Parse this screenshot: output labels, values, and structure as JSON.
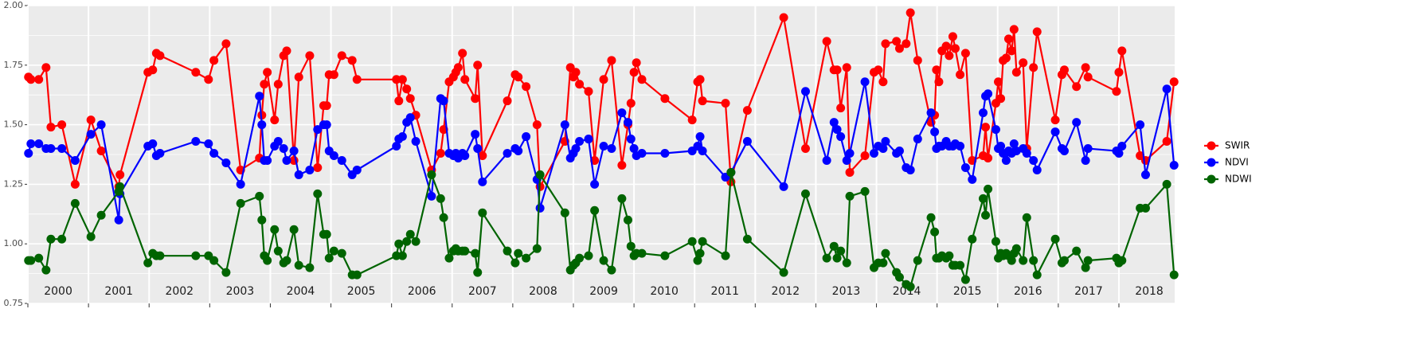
{
  "chart_data": {
    "type": "line",
    "x": [
      2000.01,
      2000.05,
      2000.18,
      2000.3,
      2000.38,
      2000.56,
      2000.78,
      2001.04,
      2001.21,
      2001.5,
      2001.52,
      2001.98,
      2002.06,
      2002.12,
      2002.18,
      2002.77,
      2002.98,
      2003.07,
      2003.27,
      2003.51,
      2003.82,
      2003.86,
      2003.9,
      2003.95,
      2004.07,
      2004.13,
      2004.22,
      2004.27,
      2004.39,
      2004.47,
      2004.65,
      2004.78,
      2004.88,
      2004.93,
      2004.97,
      2005.05,
      2005.18,
      2005.35,
      2005.43,
      2006.08,
      2006.12,
      2006.18,
      2006.25,
      2006.31,
      2006.4,
      2006.66,
      2006.81,
      2006.86,
      2006.95,
      2007.02,
      2007.06,
      2007.1,
      2007.17,
      2007.21,
      2007.38,
      2007.42,
      2007.5,
      2007.91,
      2008.04,
      2008.09,
      2008.22,
      2008.4,
      2008.45,
      2008.86,
      2008.95,
      2009.0,
      2009.04,
      2009.1,
      2009.25,
      2009.35,
      2009.5,
      2009.63,
      2009.8,
      2009.9,
      2009.95,
      2010.0,
      2010.04,
      2010.13,
      2010.51,
      2010.96,
      2011.05,
      2011.09,
      2011.13,
      2011.51,
      2011.6,
      2011.87,
      2012.47,
      2012.83,
      2013.18,
      2013.3,
      2013.35,
      2013.41,
      2013.51,
      2013.56,
      2013.81,
      2013.96,
      2014.03,
      2014.11,
      2014.15,
      2014.33,
      2014.38,
      2014.49,
      2014.56,
      2014.68,
      2014.9,
      2014.96,
      2014.99,
      2015.03,
      2015.08,
      2015.15,
      2015.2,
      2015.26,
      2015.3,
      2015.38,
      2015.47,
      2015.58,
      2015.76,
      2015.8,
      2015.84,
      2015.97,
      2016.01,
      2016.05,
      2016.09,
      2016.14,
      2016.18,
      2016.23,
      2016.27,
      2016.31,
      2016.42,
      2016.48,
      2016.59,
      2016.65,
      2016.95,
      2017.06,
      2017.1,
      2017.3,
      2017.45,
      2017.49,
      2017.96,
      2018.0,
      2018.05,
      2018.35,
      2018.44,
      2018.79,
      2018.91
    ],
    "series": [
      {
        "name": "SWIR",
        "color": "#ff0000",
        "values": [
          1.7,
          1.69,
          1.69,
          1.74,
          1.49,
          1.5,
          1.25,
          1.52,
          1.39,
          1.24,
          1.29,
          1.72,
          1.73,
          1.8,
          1.79,
          1.72,
          1.69,
          1.77,
          1.84,
          1.31,
          1.36,
          1.54,
          1.67,
          1.72,
          1.52,
          1.67,
          1.79,
          1.81,
          1.35,
          1.7,
          1.79,
          1.32,
          1.58,
          1.58,
          1.71,
          1.71,
          1.79,
          1.77,
          1.69,
          1.69,
          1.6,
          1.69,
          1.65,
          1.61,
          1.54,
          1.31,
          1.38,
          1.48,
          1.68,
          1.7,
          1.72,
          1.74,
          1.8,
          1.69,
          1.61,
          1.75,
          1.37,
          1.6,
          1.71,
          1.7,
          1.66,
          1.5,
          1.24,
          1.43,
          1.74,
          1.7,
          1.72,
          1.67,
          1.64,
          1.35,
          1.69,
          1.77,
          1.33,
          1.5,
          1.59,
          1.72,
          1.76,
          1.69,
          1.61,
          1.52,
          1.68,
          1.69,
          1.6,
          1.59,
          1.26,
          1.56,
          1.95,
          1.4,
          1.85,
          1.73,
          1.73,
          1.57,
          1.74,
          1.3,
          1.37,
          1.72,
          1.73,
          1.68,
          1.84,
          1.85,
          1.82,
          1.84,
          1.97,
          1.77,
          1.51,
          1.54,
          1.73,
          1.68,
          1.81,
          1.83,
          1.79,
          1.87,
          1.82,
          1.71,
          1.8,
          1.35,
          1.37,
          1.49,
          1.36,
          1.59,
          1.68,
          1.61,
          1.77,
          1.78,
          1.86,
          1.81,
          1.9,
          1.72,
          1.76,
          1.4,
          1.74,
          1.89,
          1.52,
          1.71,
          1.73,
          1.66,
          1.74,
          1.7,
          1.64,
          1.72,
          1.81,
          1.37,
          1.35,
          1.43,
          1.68
        ]
      },
      {
        "name": "NDVI",
        "color": "#0000ff",
        "values": [
          1.38,
          1.42,
          1.42,
          1.4,
          1.4,
          1.4,
          1.35,
          1.46,
          1.5,
          1.1,
          1.21,
          1.41,
          1.42,
          1.37,
          1.38,
          1.43,
          1.42,
          1.38,
          1.34,
          1.25,
          1.62,
          1.5,
          1.35,
          1.35,
          1.41,
          1.43,
          1.4,
          1.35,
          1.39,
          1.29,
          1.31,
          1.48,
          1.5,
          1.5,
          1.39,
          1.37,
          1.35,
          1.29,
          1.31,
          1.41,
          1.44,
          1.45,
          1.51,
          1.53,
          1.43,
          1.2,
          1.61,
          1.6,
          1.38,
          1.37,
          1.38,
          1.36,
          1.38,
          1.37,
          1.46,
          1.4,
          1.26,
          1.38,
          1.4,
          1.39,
          1.45,
          1.27,
          1.15,
          1.5,
          1.36,
          1.38,
          1.4,
          1.43,
          1.44,
          1.25,
          1.41,
          1.4,
          1.55,
          1.51,
          1.44,
          1.4,
          1.37,
          1.38,
          1.38,
          1.39,
          1.41,
          1.45,
          1.39,
          1.28,
          1.3,
          1.43,
          1.24,
          1.64,
          1.35,
          1.51,
          1.48,
          1.45,
          1.35,
          1.38,
          1.68,
          1.38,
          1.41,
          1.4,
          1.43,
          1.38,
          1.39,
          1.32,
          1.31,
          1.44,
          1.55,
          1.47,
          1.4,
          1.41,
          1.41,
          1.43,
          1.41,
          1.41,
          1.42,
          1.41,
          1.32,
          1.27,
          1.55,
          1.62,
          1.63,
          1.48,
          1.4,
          1.41,
          1.38,
          1.35,
          1.39,
          1.38,
          1.42,
          1.39,
          1.4,
          1.38,
          1.35,
          1.31,
          1.47,
          1.4,
          1.39,
          1.51,
          1.35,
          1.4,
          1.39,
          1.38,
          1.41,
          1.5,
          1.29,
          1.65,
          1.33
        ]
      },
      {
        "name": "NDWI",
        "color": "#006400",
        "values": [
          0.93,
          0.93,
          0.94,
          0.89,
          1.02,
          1.02,
          1.17,
          1.03,
          1.12,
          1.22,
          1.24,
          0.92,
          0.96,
          0.95,
          0.95,
          0.95,
          0.95,
          0.93,
          0.88,
          1.17,
          1.2,
          1.1,
          0.95,
          0.93,
          1.06,
          0.97,
          0.92,
          0.93,
          1.06,
          0.91,
          0.9,
          1.21,
          1.04,
          1.04,
          0.94,
          0.97,
          0.96,
          0.87,
          0.87,
          0.95,
          1.0,
          0.95,
          1.01,
          1.04,
          1.01,
          1.29,
          1.19,
          1.11,
          0.94,
          0.97,
          0.98,
          0.97,
          0.97,
          0.97,
          0.96,
          0.88,
          1.13,
          0.97,
          0.92,
          0.96,
          0.94,
          0.98,
          1.29,
          1.13,
          0.89,
          0.91,
          0.92,
          0.94,
          0.95,
          1.14,
          0.93,
          0.89,
          1.19,
          1.1,
          0.99,
          0.95,
          0.96,
          0.96,
          0.95,
          1.01,
          0.93,
          0.96,
          1.01,
          0.95,
          1.3,
          1.02,
          0.88,
          1.21,
          0.94,
          0.99,
          0.94,
          0.97,
          0.92,
          1.2,
          1.22,
          0.9,
          0.92,
          0.92,
          0.96,
          0.88,
          0.86,
          0.83,
          0.82,
          0.93,
          1.11,
          1.05,
          0.94,
          0.94,
          0.95,
          0.94,
          0.95,
          0.91,
          0.91,
          0.91,
          0.85,
          1.02,
          1.19,
          1.12,
          1.23,
          1.01,
          0.94,
          0.96,
          0.95,
          0.96,
          0.95,
          0.93,
          0.96,
          0.98,
          0.93,
          1.11,
          0.93,
          0.87,
          1.02,
          0.92,
          0.93,
          0.97,
          0.9,
          0.93,
          0.94,
          0.92,
          0.93,
          1.15,
          1.15,
          1.25,
          0.87
        ]
      }
    ],
    "xlim": [
      2000,
      2018.92
    ],
    "xticks": [
      2000,
      2001,
      2002,
      2003,
      2004,
      2005,
      2006,
      2007,
      2008,
      2009,
      2010,
      2011,
      2012,
      2013,
      2014,
      2015,
      2016,
      2017,
      2018
    ],
    "ylim": [
      0.75,
      2.0
    ],
    "yticks": [
      {
        "value": 0.75,
        "label": "0.75"
      },
      {
        "value": 1.0,
        "label": "1.00"
      },
      {
        "value": 1.25,
        "label": "1.25"
      },
      {
        "value": 1.5,
        "label": "1.50"
      },
      {
        "value": 1.75,
        "label": "1.75"
      },
      {
        "value": 2.0,
        "label": "2.00"
      }
    ],
    "grid": true,
    "legend": "right"
  }
}
